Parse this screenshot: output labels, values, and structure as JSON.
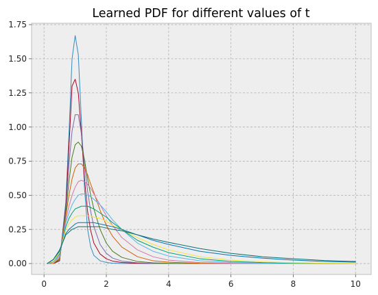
{
  "chart_data": {
    "type": "line",
    "title": "Learned PDF for different values of t",
    "xlabel": "",
    "ylabel": "",
    "xlim": [
      -0.4,
      10.5
    ],
    "ylim": [
      -0.08,
      1.76
    ],
    "xticks": [
      0,
      2,
      4,
      6,
      8,
      10
    ],
    "xtick_labels": [
      "0",
      "2",
      "4",
      "6",
      "8",
      "10"
    ],
    "yticks": [
      0.0,
      0.25,
      0.5,
      0.75,
      1.0,
      1.25,
      1.5,
      1.75
    ],
    "ytick_labels": [
      "0.00",
      "0.25",
      "0.50",
      "0.75",
      "1.00",
      "1.25",
      "1.50",
      "1.75"
    ],
    "grid": true,
    "legend": "none",
    "style": {
      "plot_background": "#eeeeee",
      "grid_color": "#b0b0b0",
      "axis_color": "#bcbcbc"
    },
    "x": [
      0.1,
      0.3,
      0.5,
      0.7,
      0.8,
      0.9,
      1.0,
      1.1,
      1.2,
      1.3,
      1.4,
      1.5,
      1.6,
      1.8,
      2.0,
      2.2,
      2.5,
      3.0,
      3.5,
      4.0,
      5.0,
      6.0,
      7.0,
      8.0,
      9.0,
      10.0
    ],
    "series": [
      {
        "color": "#348abd",
        "values": [
          0.0,
          0.0,
          0.02,
          0.45,
          0.95,
          1.5,
          1.67,
          1.53,
          1.05,
          0.55,
          0.25,
          0.12,
          0.06,
          0.02,
          0.008,
          0.003,
          0.001,
          0.0,
          0.0,
          0.0,
          0.0,
          0.0,
          0.0,
          0.0,
          0.0,
          0.0
        ]
      },
      {
        "color": "#a60628",
        "values": [
          0.0,
          0.0,
          0.02,
          0.42,
          0.85,
          1.3,
          1.35,
          1.25,
          0.95,
          0.62,
          0.38,
          0.24,
          0.15,
          0.07,
          0.035,
          0.018,
          0.008,
          0.002,
          0.0,
          0.0,
          0.0,
          0.0,
          0.0,
          0.0,
          0.0,
          0.0
        ]
      },
      {
        "color": "#7a68a6",
        "values": [
          0.0,
          0.0,
          0.03,
          0.4,
          0.72,
          0.97,
          1.09,
          1.09,
          0.95,
          0.73,
          0.53,
          0.38,
          0.27,
          0.14,
          0.075,
          0.04,
          0.018,
          0.005,
          0.001,
          0.0,
          0.0,
          0.0,
          0.0,
          0.0,
          0.0,
          0.0
        ]
      },
      {
        "color": "#467821",
        "values": [
          0.0,
          0.0,
          0.03,
          0.37,
          0.6,
          0.78,
          0.87,
          0.89,
          0.86,
          0.76,
          0.62,
          0.5,
          0.4,
          0.25,
          0.15,
          0.09,
          0.045,
          0.015,
          0.005,
          0.002,
          0.0,
          0.0,
          0.0,
          0.0,
          0.0,
          0.0
        ]
      },
      {
        "color": "#d55e00",
        "values": [
          0.0,
          0.0,
          0.04,
          0.35,
          0.5,
          0.62,
          0.7,
          0.73,
          0.73,
          0.7,
          0.65,
          0.58,
          0.52,
          0.39,
          0.28,
          0.2,
          0.12,
          0.05,
          0.02,
          0.01,
          0.002,
          0.0,
          0.0,
          0.0,
          0.0,
          0.0
        ]
      },
      {
        "color": "#cc79a7",
        "values": [
          0.0,
          0.01,
          0.05,
          0.32,
          0.42,
          0.5,
          0.56,
          0.6,
          0.61,
          0.6,
          0.58,
          0.55,
          0.51,
          0.43,
          0.35,
          0.28,
          0.19,
          0.1,
          0.05,
          0.025,
          0.007,
          0.002,
          0.0,
          0.0,
          0.0,
          0.0
        ]
      },
      {
        "color": "#56b4e9",
        "values": [
          0.0,
          0.01,
          0.06,
          0.3,
          0.37,
          0.43,
          0.47,
          0.5,
          0.51,
          0.51,
          0.5,
          0.49,
          0.47,
          0.43,
          0.38,
          0.32,
          0.25,
          0.15,
          0.09,
          0.055,
          0.02,
          0.007,
          0.003,
          0.001,
          0.0,
          0.0
        ]
      },
      {
        "color": "#009e73",
        "values": [
          0.0,
          0.02,
          0.07,
          0.27,
          0.33,
          0.37,
          0.4,
          0.41,
          0.42,
          0.42,
          0.42,
          0.41,
          0.4,
          0.37,
          0.34,
          0.3,
          0.25,
          0.17,
          0.12,
          0.08,
          0.035,
          0.015,
          0.007,
          0.003,
          0.001,
          0.0
        ]
      },
      {
        "color": "#f0e442",
        "values": [
          0.0,
          0.02,
          0.08,
          0.25,
          0.29,
          0.32,
          0.34,
          0.35,
          0.35,
          0.35,
          0.35,
          0.35,
          0.34,
          0.33,
          0.31,
          0.28,
          0.25,
          0.19,
          0.14,
          0.1,
          0.05,
          0.025,
          0.012,
          0.006,
          0.003,
          0.001
        ]
      },
      {
        "color": "#0072b2",
        "values": [
          0.0,
          0.03,
          0.09,
          0.22,
          0.25,
          0.27,
          0.29,
          0.3,
          0.3,
          0.3,
          0.3,
          0.3,
          0.3,
          0.29,
          0.28,
          0.27,
          0.25,
          0.21,
          0.17,
          0.14,
          0.09,
          0.06,
          0.04,
          0.025,
          0.015,
          0.01
        ]
      },
      {
        "color": "#0b6e6e",
        "values": [
          0.0,
          0.03,
          0.1,
          0.21,
          0.23,
          0.25,
          0.26,
          0.27,
          0.27,
          0.27,
          0.27,
          0.27,
          0.27,
          0.27,
          0.26,
          0.25,
          0.24,
          0.21,
          0.18,
          0.155,
          0.11,
          0.075,
          0.05,
          0.035,
          0.022,
          0.015
        ]
      }
    ]
  }
}
